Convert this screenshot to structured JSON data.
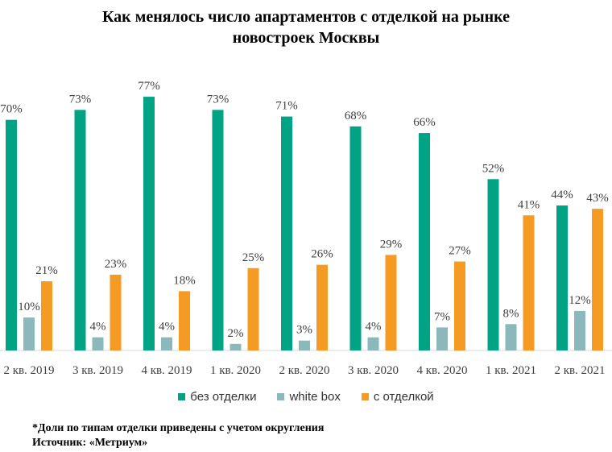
{
  "chart_data": {
    "type": "bar",
    "title_line1": "Как менялось число апартаментов  с отделкой на рынке",
    "title_line2": "новостроек  Москвы",
    "categories": [
      "2 кв. 2019",
      "3 кв. 2019",
      "4 кв. 2019",
      "1 кв. 2020",
      "2 кв. 2020",
      "3 кв. 2020",
      "4 кв. 2020",
      "1 кв. 2021",
      "2 кв. 2021"
    ],
    "series": [
      {
        "name": "без отделки",
        "color": "#00a383",
        "values": [
          70,
          73,
          77,
          73,
          71,
          68,
          66,
          52,
          44
        ]
      },
      {
        "name": "white box",
        "color": "#8ab8bb",
        "values": [
          10,
          4,
          4,
          2,
          3,
          4,
          7,
          8,
          12
        ]
      },
      {
        "name": "с отделкой",
        "color": "#f59a23",
        "values": [
          21,
          23,
          18,
          25,
          26,
          29,
          27,
          41,
          43
        ]
      }
    ],
    "value_suffix": "%",
    "ylim": [
      0,
      80
    ],
    "grid": false,
    "legend_position": "bottom"
  },
  "footer": {
    "note": "*Доли по типам отделки приведены с учетом округления",
    "source": "Источник: «Метриум»"
  }
}
